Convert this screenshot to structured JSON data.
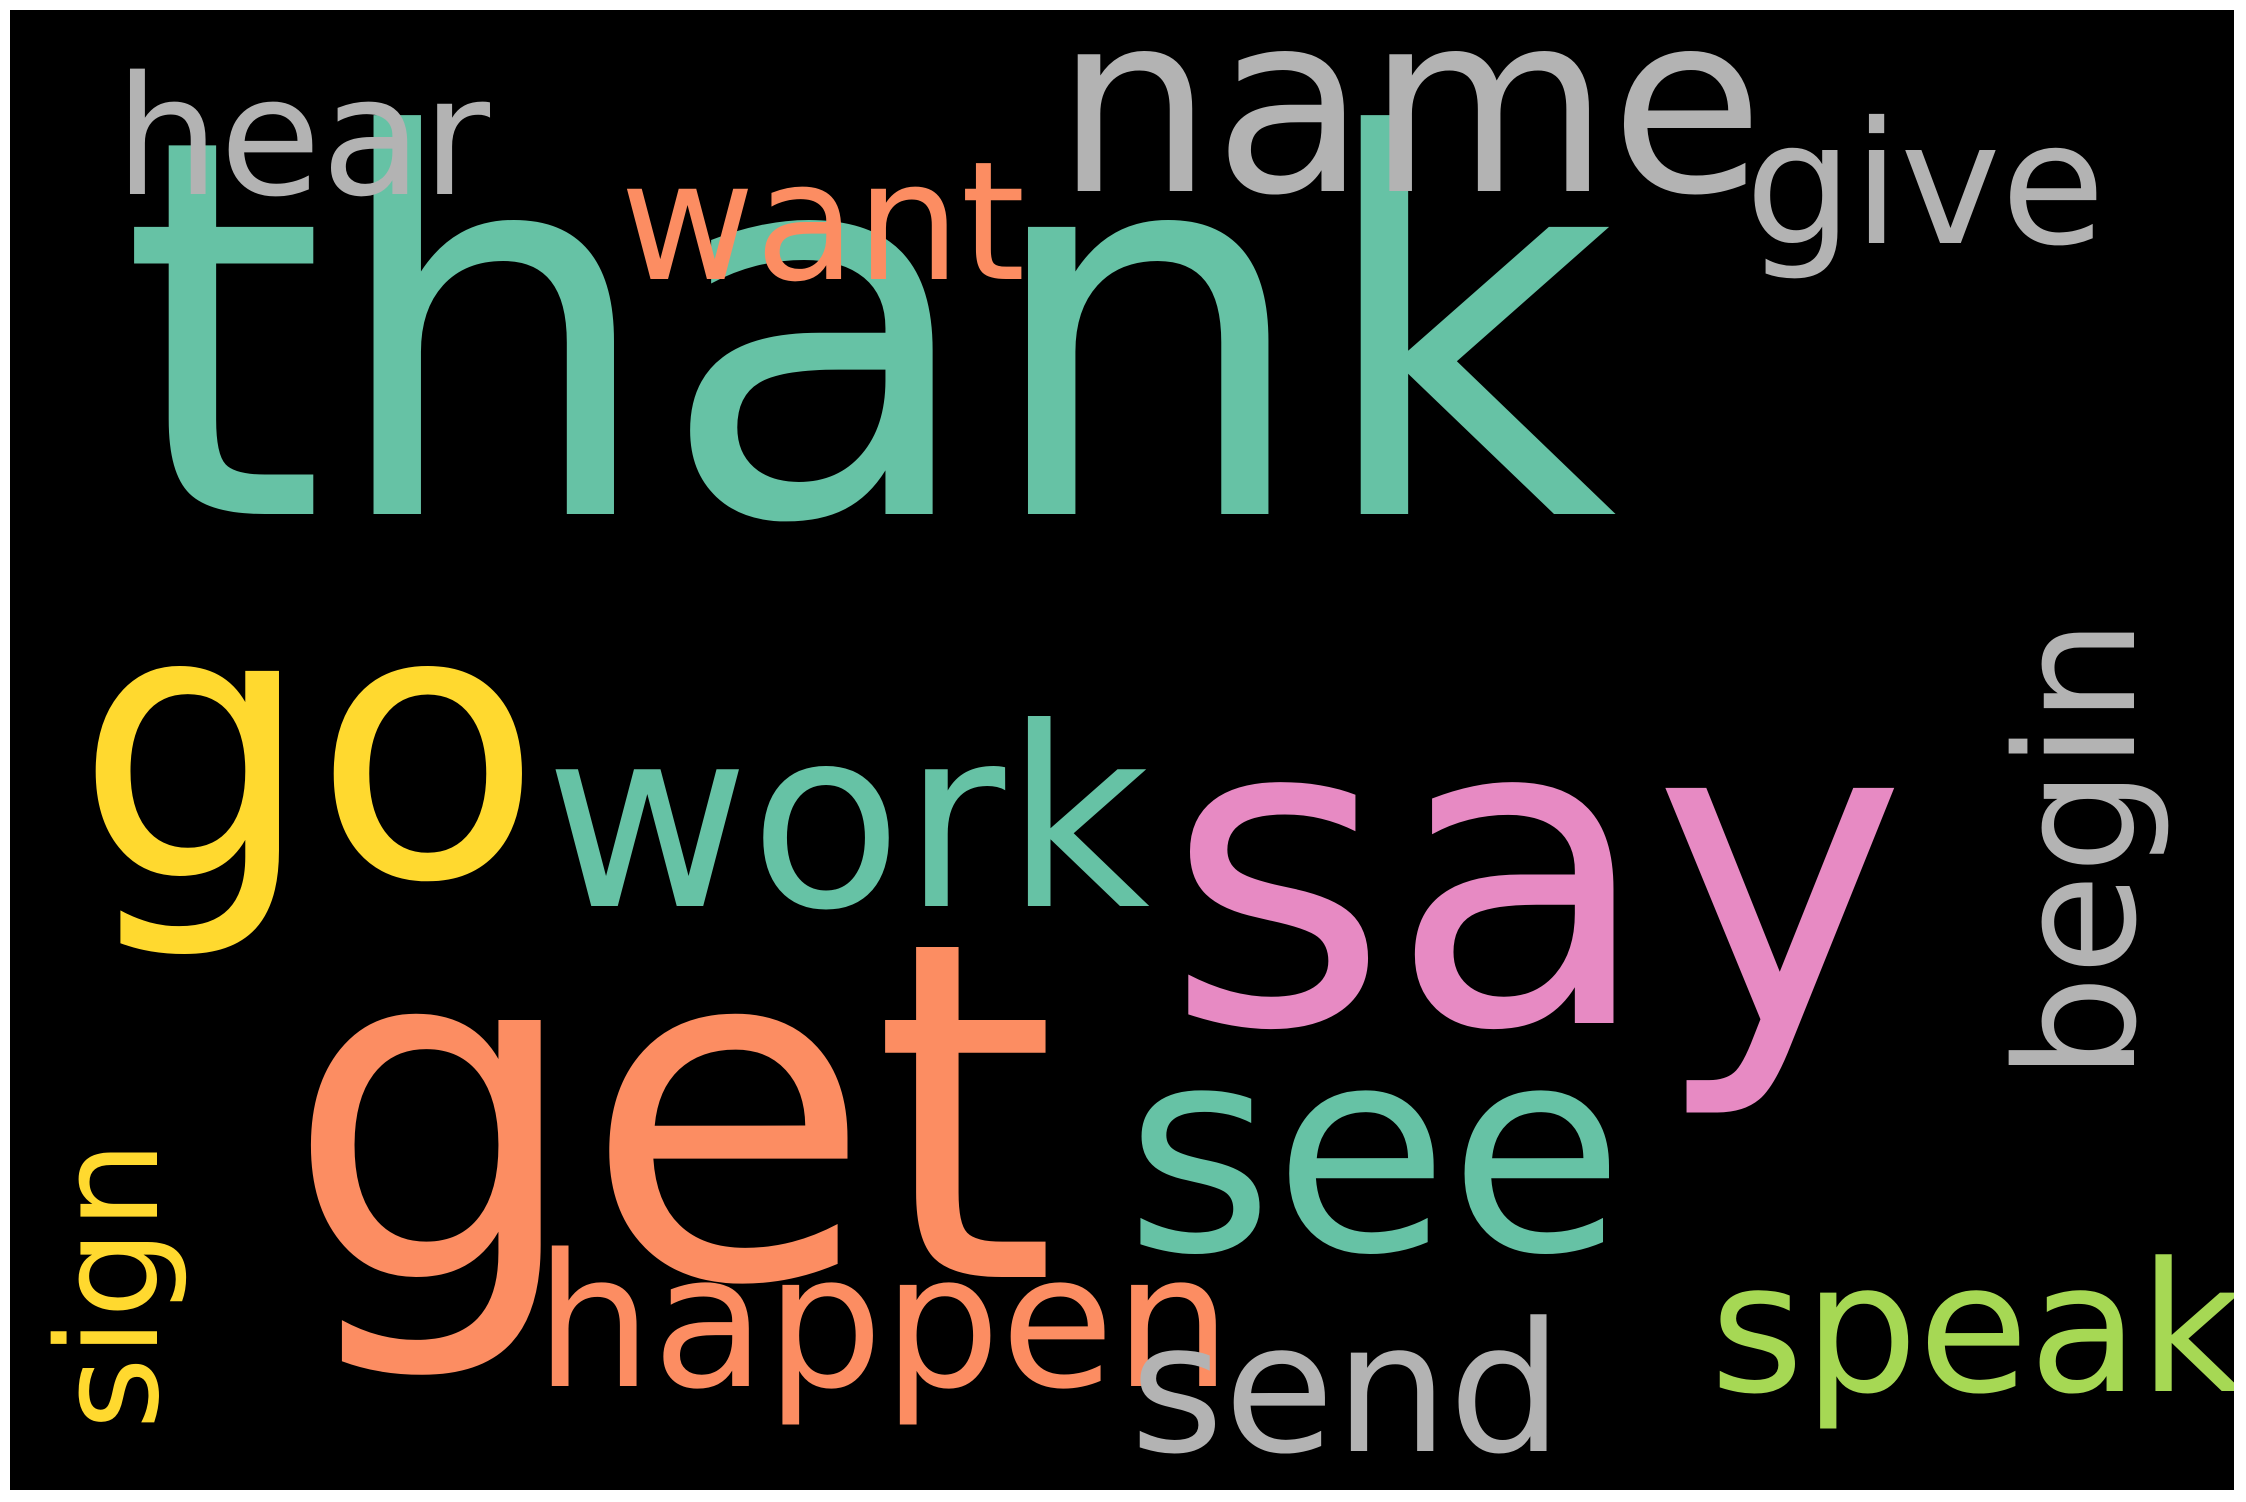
{
  "background_color": "#000000",
  "words": [
    {
      "id": "thank",
      "text": "thank",
      "color": "#66c2a5",
      "rotated": false
    },
    {
      "id": "say",
      "text": "say",
      "color": "#e78ac3",
      "rotated": false
    },
    {
      "id": "get",
      "text": "get",
      "color": "#fc8d62",
      "rotated": false
    },
    {
      "id": "go",
      "text": "go",
      "color": "#ffd92f",
      "rotated": false
    },
    {
      "id": "name",
      "text": "name",
      "color": "#b3b3b3",
      "rotated": false
    },
    {
      "id": "see",
      "text": "see",
      "color": "#66c2a5",
      "rotated": false
    },
    {
      "id": "work",
      "text": "work",
      "color": "#66c2a5",
      "rotated": false
    },
    {
      "id": "happen",
      "text": "happen",
      "color": "#fc8d62",
      "rotated": false
    },
    {
      "id": "speak",
      "text": "speak",
      "color": "#a6d854",
      "rotated": false
    },
    {
      "id": "send",
      "text": "send",
      "color": "#b3b3b3",
      "rotated": false
    },
    {
      "id": "want",
      "text": "want",
      "color": "#fc8d62",
      "rotated": false
    },
    {
      "id": "hear",
      "text": "hear",
      "color": "#b3b3b3",
      "rotated": false
    },
    {
      "id": "give",
      "text": "give",
      "color": "#b3b3b3",
      "rotated": false
    },
    {
      "id": "begin",
      "text": "begin",
      "color": "#b3b3b3",
      "rotated": true
    },
    {
      "id": "sign",
      "text": "sign",
      "color": "#ffd92f",
      "rotated": true
    }
  ]
}
